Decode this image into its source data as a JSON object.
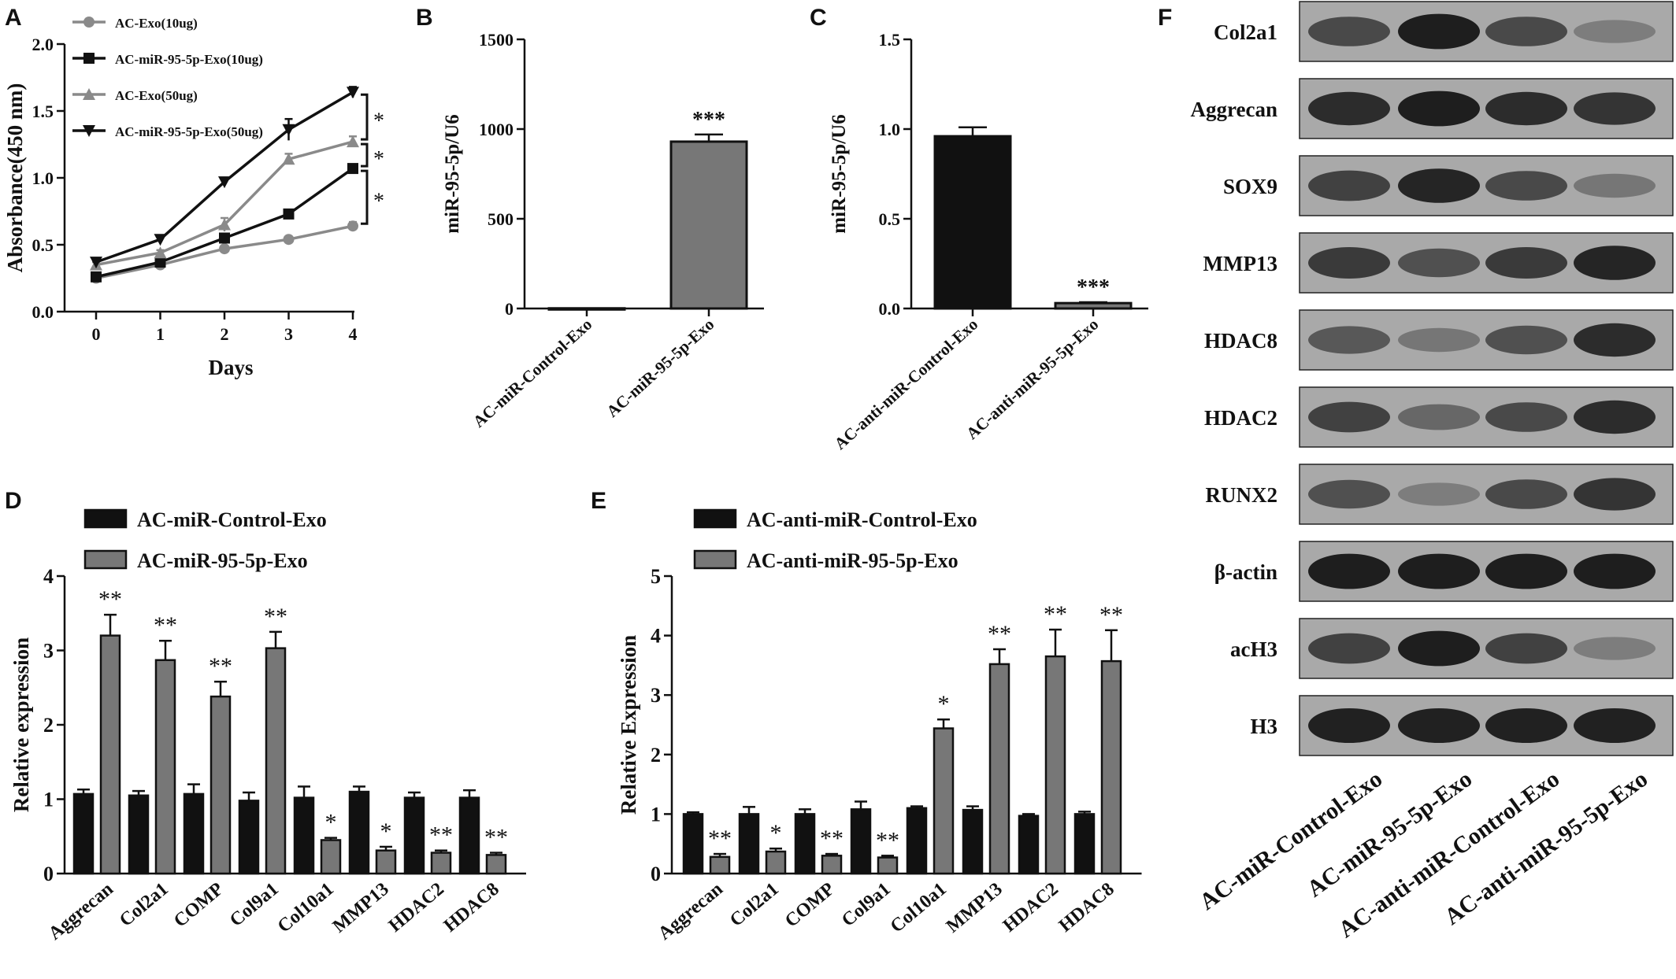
{
  "chart_data": [
    {
      "panel": "A",
      "type": "line",
      "xlabel": "Days",
      "ylabel": "Absorbance(450 nm)",
      "x": [
        0,
        1,
        2,
        3,
        4
      ],
      "xticks": [
        "0",
        "1",
        "2",
        "3",
        "4"
      ],
      "yticks": [
        "0.0",
        "0.5",
        "1.0",
        "1.5",
        "2.0"
      ],
      "ylim": [
        0,
        2.0
      ],
      "series": [
        {
          "name": "AC-Exo(10ug)",
          "values": [
            0.25,
            0.35,
            0.47,
            0.54,
            0.64
          ],
          "err": [
            0.02,
            0.02,
            0.02,
            0.02,
            0.03
          ],
          "color": "#8a8a8a",
          "marker": "circle"
        },
        {
          "name": "AC-miR-95-5p-Exo(10ug)",
          "values": [
            0.26,
            0.37,
            0.55,
            0.73,
            1.07
          ],
          "err": [
            0.02,
            0.02,
            0.03,
            0.03,
            0.03
          ],
          "color": "#111111",
          "marker": "square"
        },
        {
          "name": "AC-Exo(50ug)",
          "values": [
            0.35,
            0.44,
            0.65,
            1.14,
            1.27
          ],
          "err": [
            0.02,
            0.02,
            0.05,
            0.04,
            0.04
          ],
          "color": "#8a8a8a",
          "marker": "triangle-up"
        },
        {
          "name": "AC-miR-95-5p-Exo(50ug)",
          "values": [
            0.37,
            0.54,
            0.97,
            1.36,
            1.64
          ],
          "err": [
            0.02,
            0.02,
            0.02,
            0.08,
            0.04
          ],
          "color": "#111111",
          "marker": "triangle-down"
        }
      ],
      "annotations": [
        "*",
        "*",
        "*"
      ]
    },
    {
      "panel": "B",
      "type": "bar",
      "ylabel": "miR-95-5p/U6",
      "categories": [
        "AC-miR-Control-Exo",
        "AC-miR-95-5p-Exo"
      ],
      "values": [
        1,
        930
      ],
      "err": [
        0,
        40
      ],
      "colors": [
        "#111111",
        "#777777"
      ],
      "yticks": [
        "0",
        "500",
        "1000",
        "1500"
      ],
      "ylim": [
        0,
        1500
      ],
      "annotations": [
        "",
        "***"
      ]
    },
    {
      "panel": "C",
      "type": "bar",
      "ylabel": "miR-95-5p/U6",
      "categories": [
        "AC-anti-miR-Control-Exo",
        "AC-anti-miR-95-5p-Exo"
      ],
      "values": [
        0.96,
        0.03
      ],
      "err": [
        0.05,
        0.005
      ],
      "colors": [
        "#111111",
        "#777777"
      ],
      "yticks": [
        "0.0",
        "0.5",
        "1.0",
        "1.5"
      ],
      "ylim": [
        0,
        1.5
      ],
      "annotations": [
        "",
        "***"
      ]
    },
    {
      "panel": "D",
      "type": "bar",
      "ylabel": "Relative expression",
      "categories": [
        "Aggrecan",
        "Col2a1",
        "COMP",
        "Col9a1",
        "Col10a1",
        "MMP13",
        "HDAC2",
        "HDAC8"
      ],
      "yticks": [
        "0",
        "1",
        "2",
        "3",
        "4"
      ],
      "ylim": [
        0,
        4
      ],
      "series": [
        {
          "name": "AC-miR-Control-Exo",
          "values": [
            1.07,
            1.05,
            1.07,
            0.98,
            1.02,
            1.1,
            1.02,
            1.02
          ],
          "err": [
            0.06,
            0.06,
            0.13,
            0.11,
            0.15,
            0.07,
            0.07,
            0.1
          ],
          "color": "#111111"
        },
        {
          "name": "AC-miR-95-5p-Exo",
          "values": [
            3.2,
            2.87,
            2.38,
            3.03,
            0.45,
            0.31,
            0.28,
            0.25
          ],
          "err": [
            0.28,
            0.26,
            0.2,
            0.22,
            0.03,
            0.05,
            0.03,
            0.03
          ],
          "color": "#777777"
        }
      ],
      "annotations": [
        "**",
        "**",
        "**",
        "**",
        "*",
        "*",
        "**",
        "**"
      ]
    },
    {
      "panel": "E",
      "type": "bar",
      "ylabel": "Relative Expression",
      "categories": [
        "Aggrecan",
        "Col2a1",
        "COMP",
        "Col9a1",
        "Col10a1",
        "MMP13",
        "HDAC2",
        "HDAC8"
      ],
      "yticks": [
        "0",
        "1",
        "2",
        "3",
        "4",
        "5"
      ],
      "ylim": [
        0,
        5
      ],
      "series": [
        {
          "name": "AC-anti-miR-Control-Exo",
          "values": [
            1.0,
            1.0,
            1.0,
            1.08,
            1.1,
            1.07,
            0.97,
            1.0
          ],
          "err": [
            0.03,
            0.12,
            0.08,
            0.13,
            0.03,
            0.06,
            0.03,
            0.04
          ],
          "color": "#111111"
        },
        {
          "name": "AC-anti-miR-95-5p-Exo",
          "values": [
            0.28,
            0.37,
            0.3,
            0.27,
            2.44,
            3.52,
            3.65,
            3.57
          ],
          "err": [
            0.05,
            0.05,
            0.03,
            0.03,
            0.15,
            0.25,
            0.45,
            0.52
          ],
          "color": "#777777"
        }
      ],
      "annotations": [
        "**",
        "*",
        "**",
        "**",
        "*",
        "**",
        "**",
        "**"
      ]
    }
  ],
  "labels": {
    "A": "A",
    "B": "B",
    "C": "C",
    "D": "D",
    "E": "E",
    "F": "F"
  },
  "blot": {
    "proteins": [
      "Col2a1",
      "Aggrecan",
      "SOX9",
      "MMP13",
      "HDAC8",
      "HDAC2",
      "RUNX2",
      "β-actin",
      "acH3",
      "H3"
    ],
    "lanes": [
      "AC-miR-Control-Exo",
      "AC-miR-95-5p-Exo",
      "AC-anti-miR-Control-Exo",
      "AC-anti-miR-95-5p-Exo"
    ],
    "band_intensity": [
      [
        0.65,
        0.95,
        0.65,
        0.3
      ],
      [
        0.85,
        0.95,
        0.85,
        0.8
      ],
      [
        0.7,
        0.9,
        0.65,
        0.35
      ],
      [
        0.75,
        0.6,
        0.75,
        0.9
      ],
      [
        0.55,
        0.35,
        0.6,
        0.85
      ],
      [
        0.7,
        0.45,
        0.65,
        0.85
      ],
      [
        0.6,
        0.3,
        0.65,
        0.8
      ],
      [
        0.95,
        0.95,
        0.95,
        0.95
      ],
      [
        0.7,
        0.95,
        0.7,
        0.3
      ],
      [
        0.92,
        0.92,
        0.92,
        0.92
      ]
    ],
    "background": "#a9a9a9",
    "band_color": "#161616"
  }
}
